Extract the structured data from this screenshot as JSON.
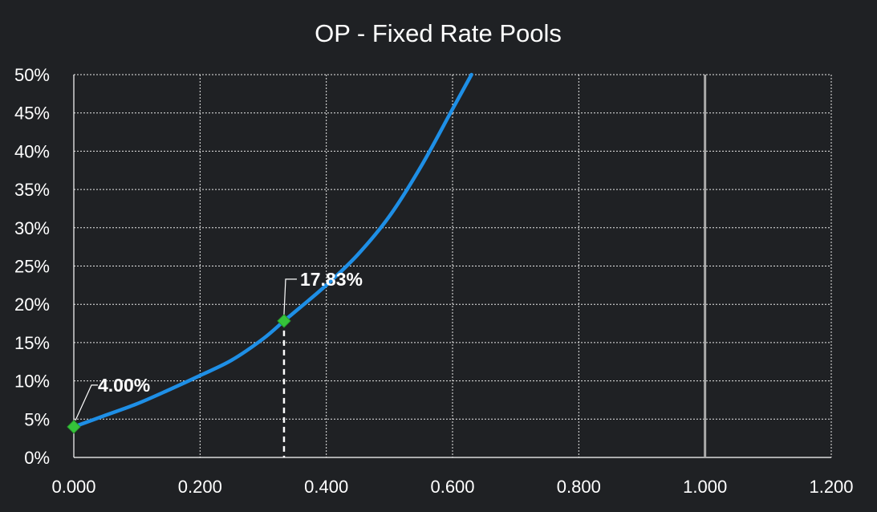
{
  "chart_data": {
    "type": "line",
    "title": "OP - Fixed Rate Pools",
    "xlabel": "",
    "ylabel": "",
    "xlim": [
      0,
      1.2
    ],
    "ylim": [
      0,
      0.5
    ],
    "x_ticks": [
      "0.000",
      "0.200",
      "0.400",
      "0.600",
      "0.800",
      "1.000",
      "1.200"
    ],
    "y_ticks": [
      "0%",
      "5%",
      "10%",
      "15%",
      "20%",
      "25%",
      "30%",
      "35%",
      "40%",
      "45%",
      "50%"
    ],
    "grid": true,
    "series": [
      {
        "color": "#1e8fe6",
        "x": [
          0.0,
          0.05,
          0.1,
          0.15,
          0.2,
          0.25,
          0.3,
          0.333,
          0.35,
          0.4,
          0.45,
          0.5,
          0.55,
          0.6,
          0.63
        ],
        "y": [
          0.04,
          0.055,
          0.07,
          0.088,
          0.107,
          0.127,
          0.155,
          0.1783,
          0.19,
          0.225,
          0.265,
          0.315,
          0.38,
          0.455,
          0.5
        ]
      }
    ],
    "highlight_points": [
      {
        "x": 0.0,
        "y": 0.04,
        "label": "4.00%"
      },
      {
        "x": 0.333,
        "y": 0.1783,
        "label": "17.83%"
      }
    ],
    "reference_line_x": 1.0,
    "colors": {
      "background": "#1f2124",
      "curve": "#1e8fe6",
      "marker": "#35c43a",
      "reference_line": "#a9a9a9"
    }
  }
}
